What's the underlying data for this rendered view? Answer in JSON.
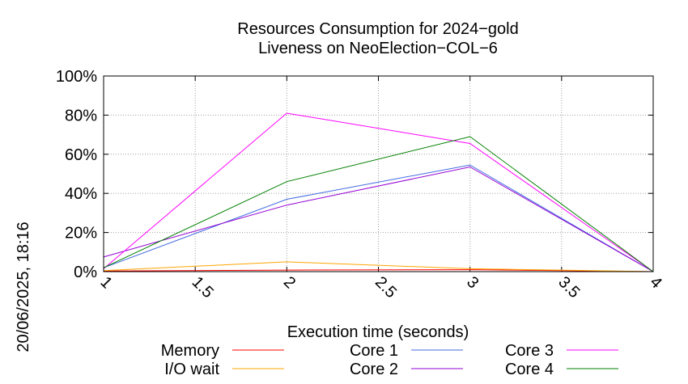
{
  "chart_data": {
    "type": "line",
    "title": [
      "Resources Consumption for 2024−gold",
      "Liveness on NeoElection−COL−6"
    ],
    "xlabel": "Execution time (seconds)",
    "ylabel": "",
    "side_label": "20/06/2025, 18:16",
    "xlim": [
      1,
      4
    ],
    "ylim": [
      0,
      100
    ],
    "x_ticks": [
      "1",
      "1.5",
      "2",
      "2.5",
      "3",
      "3.5",
      "4"
    ],
    "y_ticks": [
      "0%",
      "20%",
      "40%",
      "60%",
      "80%",
      "100%"
    ],
    "grid": true,
    "legend_position": "bottom",
    "x": [
      1,
      2,
      3,
      4
    ],
    "series": [
      {
        "name": "Memory",
        "color": "#ff0000",
        "values": [
          0.3,
          0.8,
          1.0,
          0.0
        ]
      },
      {
        "name": "I/O wait",
        "color": "#ffa500",
        "values": [
          0.5,
          5.0,
          1.5,
          0.0
        ]
      },
      {
        "name": "Core 1",
        "color": "#4169e1",
        "values": [
          2.0,
          37.0,
          54.5,
          0.0
        ]
      },
      {
        "name": "Core 2",
        "color": "#9400d3",
        "values": [
          7.5,
          34.0,
          53.5,
          0.0
        ]
      },
      {
        "name": "Core 3",
        "color": "#ff00ff",
        "values": [
          1.5,
          81.0,
          65.5,
          0.0
        ]
      },
      {
        "name": "Core 4",
        "color": "#008000",
        "values": [
          2.0,
          46.0,
          69.0,
          0.0
        ]
      }
    ]
  }
}
